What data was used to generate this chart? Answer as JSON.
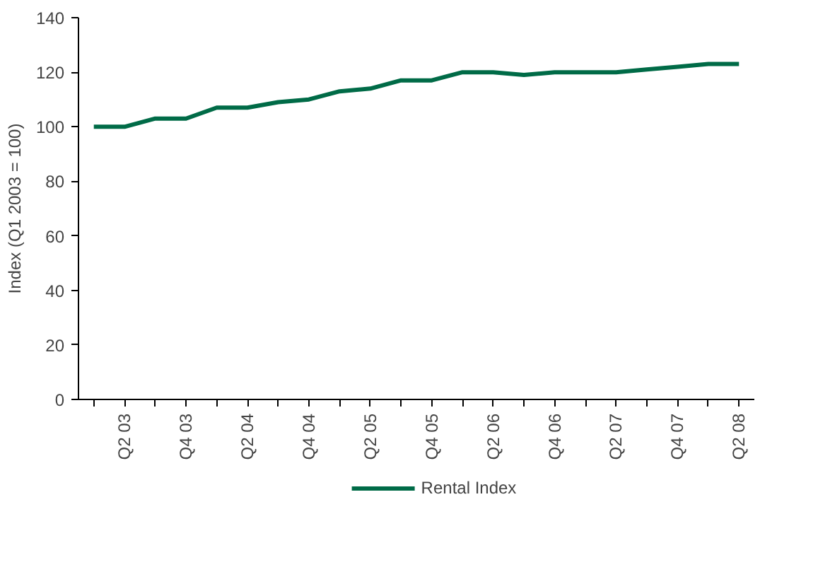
{
  "chart_data": {
    "type": "line",
    "ylabel": "Index (Q1 2003 = 100)",
    "categories": [
      null,
      "Q2 03",
      null,
      "Q4 03",
      null,
      "Q2 04",
      null,
      "Q4 04",
      null,
      "Q2 05",
      null,
      "Q4 05",
      null,
      "Q2 06",
      null,
      "Q4 06",
      null,
      "Q2 07",
      null,
      "Q4 07",
      null,
      "Q2 08"
    ],
    "series": [
      {
        "name": "Rental Index",
        "color": "#006b47",
        "values": [
          100,
          100,
          103,
          103,
          107,
          107,
          109,
          110,
          113,
          114,
          117,
          117,
          120,
          120,
          119,
          120,
          120,
          120,
          121,
          122,
          123,
          123
        ]
      }
    ],
    "ylim": [
      0,
      140
    ],
    "yticks": [
      0,
      20,
      40,
      60,
      80,
      100,
      120,
      140
    ],
    "grid": false,
    "legend": "bottom",
    "marker": "none",
    "line_style": "solid"
  }
}
